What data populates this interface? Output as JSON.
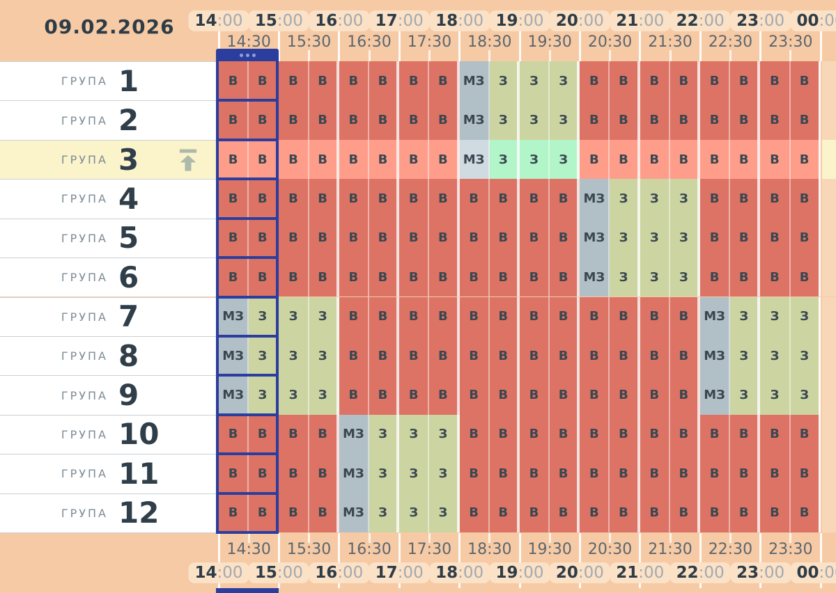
{
  "app": {
    "date": "09.02.2026"
  },
  "colors": {
    "page_bg": "#f6caa5",
    "pill_bg": "#fbe1c6",
    "hour_text": "#2d3c47",
    "minute_text": "#a3a9b0",
    "half_label_text": "#5b666f",
    "row_bg": "#ffffff",
    "row_separator": "#cbd0d4",
    "group_label_text": "#7b8a94",
    "group_number_text": "#2f3e49",
    "cell_text": "#3a4750",
    "selection_blue": "#2c3e9d",
    "selection_dots": "#8fa0d6",
    "highlight_row_bg": "#fbf4cb",
    "right_margin_bg": "#f8d7b9",
    "arrow_icon": "#adbaab"
  },
  "cell_types": {
    "В": {
      "label": "В",
      "color": "#dc7365",
      "highlight_color": "#ff9d8b"
    },
    "З": {
      "label": "З",
      "color": "#ccd5a2",
      "highlight_color": "#b2f5c8"
    },
    "МЗ": {
      "label": "МЗ",
      "color": "#b1bfc7",
      "highlight_color": "#cfdae1"
    }
  },
  "axis": {
    "hours": [
      {
        "hour": "14",
        "minutes": ":00"
      },
      {
        "hour": "15",
        "minutes": ":00"
      },
      {
        "hour": "16",
        "minutes": ":00"
      },
      {
        "hour": "17",
        "minutes": ":00"
      },
      {
        "hour": "18",
        "minutes": ":00"
      },
      {
        "hour": "19",
        "minutes": ":00"
      },
      {
        "hour": "20",
        "minutes": ":00"
      },
      {
        "hour": "21",
        "minutes": ":00"
      },
      {
        "hour": "22",
        "minutes": ":00"
      },
      {
        "hour": "23",
        "minutes": ":00"
      },
      {
        "hour": "00",
        "minutes": ":00"
      }
    ],
    "half_hours": [
      "14:30",
      "15:30",
      "16:30",
      "17:30",
      "18:30",
      "19:30",
      "20:30",
      "21:30",
      "22:30",
      "23:30"
    ]
  },
  "selection": {
    "hour_index": 0
  },
  "groups": [
    {
      "label": "ГРУПА",
      "number": "1",
      "highlighted": false,
      "cells": [
        "В",
        "В",
        "В",
        "В",
        "В",
        "В",
        "В",
        "В",
        "МЗ",
        "З",
        "З",
        "З",
        "В",
        "В",
        "В",
        "В",
        "В",
        "В",
        "В",
        "В"
      ]
    },
    {
      "label": "ГРУПА",
      "number": "2",
      "highlighted": false,
      "cells": [
        "В",
        "В",
        "В",
        "В",
        "В",
        "В",
        "В",
        "В",
        "МЗ",
        "З",
        "З",
        "З",
        "В",
        "В",
        "В",
        "В",
        "В",
        "В",
        "В",
        "В"
      ]
    },
    {
      "label": "ГРУПА",
      "number": "3",
      "highlighted": true,
      "cells": [
        "В",
        "В",
        "В",
        "В",
        "В",
        "В",
        "В",
        "В",
        "МЗ",
        "З",
        "З",
        "З",
        "В",
        "В",
        "В",
        "В",
        "В",
        "В",
        "В",
        "В"
      ]
    },
    {
      "label": "ГРУПА",
      "number": "4",
      "highlighted": false,
      "cells": [
        "В",
        "В",
        "В",
        "В",
        "В",
        "В",
        "В",
        "В",
        "В",
        "В",
        "В",
        "В",
        "МЗ",
        "З",
        "З",
        "З",
        "В",
        "В",
        "В",
        "В"
      ]
    },
    {
      "label": "ГРУПА",
      "number": "5",
      "highlighted": false,
      "cells": [
        "В",
        "В",
        "В",
        "В",
        "В",
        "В",
        "В",
        "В",
        "В",
        "В",
        "В",
        "В",
        "МЗ",
        "З",
        "З",
        "З",
        "В",
        "В",
        "В",
        "В"
      ]
    },
    {
      "label": "ГРУПА",
      "number": "6",
      "highlighted": false,
      "cells": [
        "В",
        "В",
        "В",
        "В",
        "В",
        "В",
        "В",
        "В",
        "В",
        "В",
        "В",
        "В",
        "МЗ",
        "З",
        "З",
        "З",
        "В",
        "В",
        "В",
        "В"
      ]
    },
    {
      "label": "ГРУПА",
      "number": "7",
      "highlighted": false,
      "cells": [
        "МЗ",
        "З",
        "З",
        "З",
        "В",
        "В",
        "В",
        "В",
        "В",
        "В",
        "В",
        "В",
        "В",
        "В",
        "В",
        "В",
        "МЗ",
        "З",
        "З",
        "З"
      ]
    },
    {
      "label": "ГРУПА",
      "number": "8",
      "highlighted": false,
      "cells": [
        "МЗ",
        "З",
        "З",
        "З",
        "В",
        "В",
        "В",
        "В",
        "В",
        "В",
        "В",
        "В",
        "В",
        "В",
        "В",
        "В",
        "МЗ",
        "З",
        "З",
        "З"
      ]
    },
    {
      "label": "ГРУПА",
      "number": "9",
      "highlighted": false,
      "cells": [
        "МЗ",
        "З",
        "З",
        "З",
        "В",
        "В",
        "В",
        "В",
        "В",
        "В",
        "В",
        "В",
        "В",
        "В",
        "В",
        "В",
        "МЗ",
        "З",
        "З",
        "З"
      ]
    },
    {
      "label": "ГРУПА",
      "number": "10",
      "highlighted": false,
      "cells": [
        "В",
        "В",
        "В",
        "В",
        "МЗ",
        "З",
        "З",
        "З",
        "В",
        "В",
        "В",
        "В",
        "В",
        "В",
        "В",
        "В",
        "В",
        "В",
        "В",
        "В"
      ]
    },
    {
      "label": "ГРУПА",
      "number": "11",
      "highlighted": false,
      "cells": [
        "В",
        "В",
        "В",
        "В",
        "МЗ",
        "З",
        "З",
        "З",
        "В",
        "В",
        "В",
        "В",
        "В",
        "В",
        "В",
        "В",
        "В",
        "В",
        "В",
        "В"
      ]
    },
    {
      "label": "ГРУПА",
      "number": "12",
      "highlighted": false,
      "cells": [
        "В",
        "В",
        "В",
        "В",
        "МЗ",
        "З",
        "З",
        "З",
        "В",
        "В",
        "В",
        "В",
        "В",
        "В",
        "В",
        "В",
        "В",
        "В",
        "В",
        "В"
      ]
    }
  ]
}
